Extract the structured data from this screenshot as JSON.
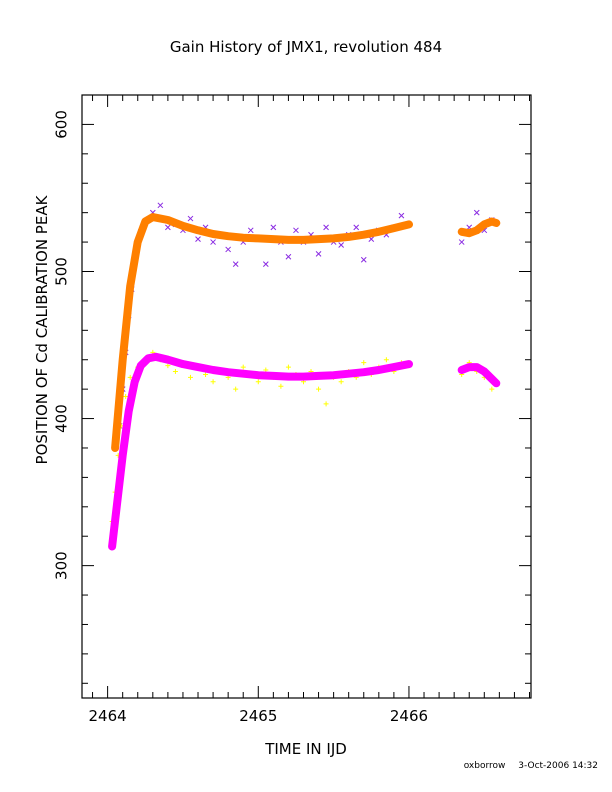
{
  "chart_data": {
    "type": "scatter",
    "title": "Gain History of JMX1, revolution 484",
    "xlabel": "TIME IN IJD",
    "ylabel": "POSITION OF Cd CALIBRATION PEAK",
    "xlim": [
      2463.83,
      2466.81
    ],
    "ylim": [
      210,
      620
    ],
    "xticks": [
      2464,
      2465,
      2466
    ],
    "yticks": [
      300,
      400,
      500,
      600
    ],
    "grid": false,
    "series": [
      {
        "marker": "x",
        "color": "#8a2be2",
        "points": [
          [
            2464.05,
            380
          ],
          [
            2464.08,
            395
          ],
          [
            2464.1,
            420
          ],
          [
            2464.12,
            445
          ],
          [
            2464.14,
            470
          ],
          [
            2464.16,
            488
          ],
          [
            2464.18,
            505
          ],
          [
            2464.2,
            518
          ],
          [
            2464.22,
            527
          ],
          [
            2464.25,
            533
          ],
          [
            2464.3,
            540
          ],
          [
            2464.35,
            545
          ],
          [
            2464.4,
            530
          ],
          [
            2464.45,
            532
          ],
          [
            2464.5,
            528
          ],
          [
            2464.55,
            536
          ],
          [
            2464.6,
            522
          ],
          [
            2464.65,
            530
          ],
          [
            2464.7,
            520
          ],
          [
            2464.75,
            525
          ],
          [
            2464.8,
            515
          ],
          [
            2464.85,
            505
          ],
          [
            2464.9,
            520
          ],
          [
            2464.95,
            528
          ],
          [
            2465.0,
            523
          ],
          [
            2465.05,
            505
          ],
          [
            2465.1,
            530
          ],
          [
            2465.15,
            520
          ],
          [
            2465.2,
            510
          ],
          [
            2465.25,
            528
          ],
          [
            2465.3,
            520
          ],
          [
            2465.35,
            525
          ],
          [
            2465.4,
            512
          ],
          [
            2465.45,
            530
          ],
          [
            2465.5,
            520
          ],
          [
            2465.55,
            518
          ],
          [
            2465.6,
            525
          ],
          [
            2465.65,
            530
          ],
          [
            2465.7,
            508
          ],
          [
            2465.75,
            522
          ],
          [
            2465.8,
            528
          ],
          [
            2465.85,
            525
          ],
          [
            2465.9,
            530
          ],
          [
            2465.95,
            538
          ],
          [
            2466.0,
            532
          ],
          [
            2466.35,
            520
          ],
          [
            2466.4,
            530
          ],
          [
            2466.45,
            540
          ],
          [
            2466.5,
            528
          ],
          [
            2466.55,
            535
          ]
        ]
      },
      {
        "marker": "+",
        "color": "#ffff00",
        "points": [
          [
            2464.03,
            330
          ],
          [
            2464.05,
            350
          ],
          [
            2464.07,
            375
          ],
          [
            2464.09,
            395
          ],
          [
            2464.12,
            415
          ],
          [
            2464.15,
            428
          ],
          [
            2464.2,
            435
          ],
          [
            2464.25,
            440
          ],
          [
            2464.3,
            445
          ],
          [
            2464.35,
            440
          ],
          [
            2464.4,
            436
          ],
          [
            2464.45,
            432
          ],
          [
            2464.5,
            438
          ],
          [
            2464.55,
            428
          ],
          [
            2464.6,
            435
          ],
          [
            2464.65,
            430
          ],
          [
            2464.7,
            425
          ],
          [
            2464.75,
            432
          ],
          [
            2464.8,
            428
          ],
          [
            2464.85,
            420
          ],
          [
            2464.9,
            435
          ],
          [
            2464.95,
            430
          ],
          [
            2465.0,
            425
          ],
          [
            2465.05,
            433
          ],
          [
            2465.1,
            428
          ],
          [
            2465.15,
            422
          ],
          [
            2465.2,
            435
          ],
          [
            2465.25,
            430
          ],
          [
            2465.3,
            425
          ],
          [
            2465.35,
            432
          ],
          [
            2465.4,
            420
          ],
          [
            2465.45,
            410
          ],
          [
            2465.5,
            428
          ],
          [
            2465.55,
            425
          ],
          [
            2465.6,
            432
          ],
          [
            2465.65,
            428
          ],
          [
            2465.7,
            438
          ],
          [
            2465.75,
            430
          ],
          [
            2465.8,
            435
          ],
          [
            2465.85,
            440
          ],
          [
            2465.9,
            432
          ],
          [
            2465.95,
            438
          ],
          [
            2466.0,
            436
          ],
          [
            2466.35,
            430
          ],
          [
            2466.4,
            438
          ],
          [
            2466.45,
            432
          ],
          [
            2466.5,
            428
          ],
          [
            2466.55,
            420
          ]
        ]
      },
      {
        "marker": "line",
        "color": "#ff8000",
        "segments": [
          [
            [
              2464.05,
              380
            ],
            [
              2464.1,
              440
            ],
            [
              2464.15,
              490
            ],
            [
              2464.2,
              520
            ],
            [
              2464.25,
              534
            ],
            [
              2464.3,
              537
            ],
            [
              2464.4,
              535
            ],
            [
              2464.5,
              531
            ],
            [
              2464.6,
              528
            ],
            [
              2464.7,
              525.5
            ],
            [
              2464.8,
              524
            ],
            [
              2464.9,
              523
            ],
            [
              2465.0,
              522.5
            ],
            [
              2465.1,
              522
            ],
            [
              2465.2,
              521.5
            ],
            [
              2465.3,
              521.5
            ],
            [
              2465.4,
              522
            ],
            [
              2465.5,
              522.5
            ],
            [
              2465.6,
              523.5
            ],
            [
              2465.7,
              525
            ],
            [
              2465.8,
              527
            ],
            [
              2465.9,
              529.5
            ],
            [
              2466.0,
              532
            ]
          ],
          [
            [
              2466.35,
              527
            ],
            [
              2466.4,
              526
            ],
            [
              2466.45,
              528
            ],
            [
              2466.5,
              532
            ],
            [
              2466.55,
              534
            ],
            [
              2466.58,
              533
            ]
          ]
        ]
      },
      {
        "marker": "line",
        "color": "#ff00ff",
        "segments": [
          [
            [
              2464.03,
              313
            ],
            [
              2464.06,
              340
            ],
            [
              2464.1,
              375
            ],
            [
              2464.14,
              405
            ],
            [
              2464.18,
              425
            ],
            [
              2464.22,
              436
            ],
            [
              2464.27,
              441
            ],
            [
              2464.32,
              442
            ],
            [
              2464.4,
              440
            ],
            [
              2464.5,
              437
            ],
            [
              2464.6,
              435
            ],
            [
              2464.7,
              433
            ],
            [
              2464.8,
              431.5
            ],
            [
              2464.9,
              430.5
            ],
            [
              2465.0,
              429.5
            ],
            [
              2465.1,
              429
            ],
            [
              2465.2,
              428.5
            ],
            [
              2465.3,
              428.5
            ],
            [
              2465.4,
              429
            ],
            [
              2465.5,
              429.5
            ],
            [
              2465.6,
              430.5
            ],
            [
              2465.7,
              431.5
            ],
            [
              2465.8,
              433
            ],
            [
              2465.9,
              435
            ],
            [
              2466.0,
              437
            ]
          ],
          [
            [
              2466.35,
              433
            ],
            [
              2466.4,
              435
            ],
            [
              2466.45,
              435
            ],
            [
              2466.5,
              432
            ],
            [
              2466.55,
              427
            ],
            [
              2466.58,
              424
            ]
          ]
        ]
      }
    ]
  },
  "footer": {
    "author": "oxborrow",
    "timestamp": "3-Oct-2006 14:32"
  }
}
